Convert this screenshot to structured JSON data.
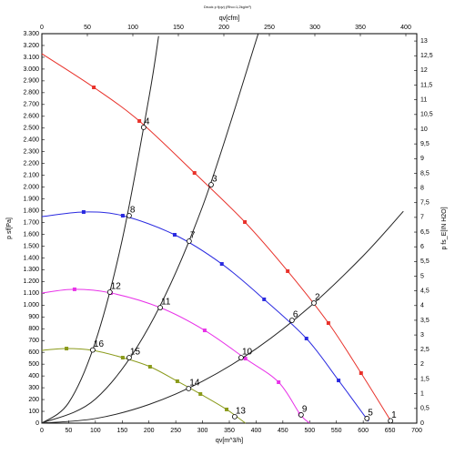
{
  "chart_data": {
    "type": "line",
    "title": "Druck p f(qv) (Rho=1,2kg/m³)",
    "xlabel": "qv[m^3/h]",
    "x2label": "qv[cfm]",
    "ylabel": "p sf[Pa]",
    "y2label": "p fs_E[IN H2O]",
    "xlim": [
      0,
      700
    ],
    "xticks": [
      0,
      50,
      100,
      150,
      200,
      250,
      300,
      350,
      400,
      450,
      500,
      550,
      600,
      650,
      700
    ],
    "x2lim": [
      0,
      412
    ],
    "x2ticks": [
      0,
      50,
      100,
      150,
      200,
      250,
      300,
      350,
      400
    ],
    "ylim": [
      0,
      3300
    ],
    "yticks": [
      0,
      100,
      200,
      300,
      400,
      500,
      600,
      700,
      800,
      900,
      {
        "value": 1000,
        "label": "1.000"
      },
      {
        "value": 1100,
        "label": "1.100"
      },
      {
        "value": 1200,
        "label": "1.200"
      },
      {
        "value": 1300,
        "label": "1.300"
      },
      {
        "value": 1400,
        "label": "1.400"
      },
      {
        "value": 1500,
        "label": "1.500"
      },
      {
        "value": 1600,
        "label": "1.600"
      },
      {
        "value": 1700,
        "label": "1.700"
      },
      {
        "value": 1800,
        "label": "1.800"
      },
      {
        "value": 1900,
        "label": "1.900"
      },
      {
        "value": 2000,
        "label": "2.000"
      },
      {
        "value": 2100,
        "label": "2.100"
      },
      {
        "value": 2200,
        "label": "2.200"
      },
      {
        "value": 2300,
        "label": "2.300"
      },
      {
        "value": 2400,
        "label": "2.400"
      },
      {
        "value": 2500,
        "label": "2.500"
      },
      {
        "value": 2600,
        "label": "2.600"
      },
      {
        "value": 2700,
        "label": "2.700"
      },
      {
        "value": 2800,
        "label": "2.800"
      },
      {
        "value": 2900,
        "label": "2.900"
      },
      {
        "value": 3000,
        "label": "3.000"
      },
      {
        "value": 3100,
        "label": "3.100"
      },
      {
        "value": 3200,
        "label": "3.200"
      },
      {
        "value": 3300,
        "label": "3.300"
      }
    ],
    "y2lim": [
      0,
      13.25
    ],
    "y2ticks": [
      0,
      {
        "value": 0.5,
        "label": "0,5"
      },
      1,
      {
        "value": 1.5,
        "label": "1,5"
      },
      2,
      {
        "value": 2.5,
        "label": "2,5"
      },
      3,
      {
        "value": 3.5,
        "label": "3,5"
      },
      4,
      {
        "value": 4.5,
        "label": "4,5"
      },
      5,
      {
        "value": 5.5,
        "label": "5,5"
      },
      6,
      {
        "value": 6.5,
        "label": "6,5"
      },
      7,
      {
        "value": 7.5,
        "label": "7,5"
      },
      8,
      {
        "value": 8.5,
        "label": "8,5"
      },
      9,
      {
        "value": 9.5,
        "label": "9,5"
      },
      10,
      {
        "value": 10.5,
        "label": "10,5"
      },
      11,
      {
        "value": 11.5,
        "label": "11,5"
      },
      12,
      {
        "value": 12.5,
        "label": "12,5"
      },
      13
    ],
    "series": [
      {
        "color": "#e8312a",
        "markers": true,
        "x": [
          0,
          97,
          182,
          285,
          379,
          459,
          535,
          596,
          652
        ],
        "values": [
          3130,
          2845,
          2560,
          2120,
          1704,
          1288,
          848,
          424,
          15
        ]
      },
      {
        "color": "#2a2ae0",
        "markers": true,
        "x": [
          0,
          78,
          151,
          248,
          336,
          415,
          494,
          554,
          610
        ],
        "values": [
          1750,
          1789,
          1758,
          1596,
          1349,
          1049,
          717,
          362,
          15
        ]
      },
      {
        "color": "#e832e8",
        "markers": true,
        "x": [
          0,
          61,
          129,
          221,
          304,
          380,
          442,
          482,
          500
        ],
        "values": [
          1103,
          1134,
          1103,
          979,
          786,
          547,
          347,
          77,
          0
        ]
      },
      {
        "color": "#8a9a1a",
        "markers": true,
        "x": [
          0,
          46,
          95,
          151,
          202,
          253,
          296,
          345,
          380
        ],
        "values": [
          617,
          632,
          617,
          555,
          478,
          355,
          247,
          116,
          0
        ]
      },
      {
        "color": "#222222",
        "markers": false,
        "x": [
          0,
          50,
          100,
          150,
          200,
          218
        ],
        "values": [
          0,
          173,
          690,
          1553,
          2760,
          3279
        ]
      },
      {
        "color": "#222222",
        "markers": false,
        "x": [
          0,
          100,
          200,
          300,
          404
        ],
        "values": [
          0,
          204,
          816,
          1836,
          3300
        ]
      },
      {
        "color": "#222222",
        "markers": false,
        "x": [
          0,
          100,
          200,
          300,
          400,
          500,
          600,
          675
        ],
        "values": [
          0,
          39,
          158,
          355,
          630,
          985,
          1418,
          1795
        ]
      }
    ],
    "points": {
      "labels": [
        "1",
        "2",
        "3",
        "4",
        "5",
        "6",
        "7",
        "8",
        "9",
        "10",
        "11",
        "12",
        "13",
        "14",
        "15",
        "16"
      ],
      "x": [
        651,
        508,
        316,
        190,
        607,
        467,
        275,
        163,
        484,
        372,
        221,
        127,
        360,
        274,
        163,
        95
      ],
      "values": [
        20,
        1018,
        2020,
        2506,
        40,
        871,
        1542,
        1758,
        70,
        555,
        979,
        1110,
        55,
        293,
        555,
        620
      ]
    }
  }
}
